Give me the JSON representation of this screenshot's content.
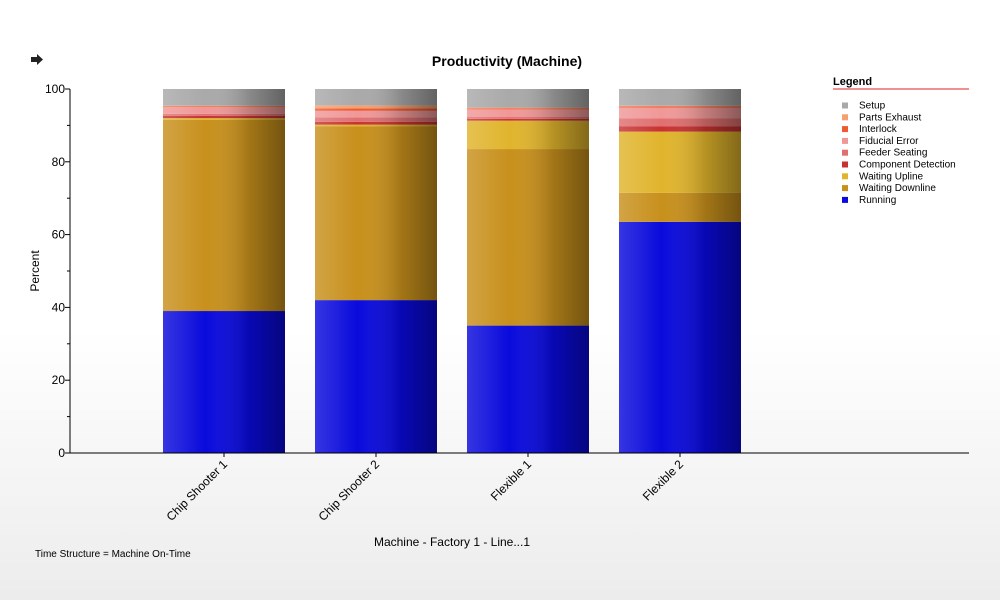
{
  "chart_data": {
    "type": "bar",
    "stacked": true,
    "title": "Productivity  (Machine)",
    "xlabel": "Machine - Factory 1 - Line...1",
    "ylabel": "Percent",
    "ylim": [
      0,
      100
    ],
    "yticks": [
      0,
      20,
      40,
      60,
      80,
      100
    ],
    "grid": false,
    "legend_title": "Legend",
    "legend_position": "top-right",
    "categories": [
      "Chip Shooter 1",
      "Chip Shooter 2",
      "Flexible 1",
      "Flexible 2"
    ],
    "series": [
      {
        "name": "Running",
        "color": "#0a0adc",
        "values": [
          39,
          42,
          35,
          63.5
        ]
      },
      {
        "name": "Waiting Downline",
        "color": "#c8901c",
        "values": [
          52.5,
          47.7,
          48.5,
          8
        ]
      },
      {
        "name": "Waiting Upline",
        "color": "#e0b42c",
        "values": [
          0.5,
          0.5,
          7.8,
          16.8
        ]
      },
      {
        "name": "Component Detection",
        "color": "#c83232",
        "values": [
          0.6,
          0.8,
          0.5,
          1.4
        ]
      },
      {
        "name": "Feeder Seating",
        "color": "#e07070",
        "values": [
          0.6,
          1.2,
          0.5,
          2.2
        ]
      },
      {
        "name": "Fiducial Error",
        "color": "#f09898",
        "values": [
          1.8,
          1.8,
          2.1,
          3.0
        ]
      },
      {
        "name": "Interlock",
        "color": "#ee5a32",
        "values": [
          0.2,
          0.7,
          0.3,
          0.3
        ]
      },
      {
        "name": "Parts Exhaust",
        "color": "#f4a070",
        "values": [
          0.2,
          0.8,
          0.2,
          0.2
        ]
      },
      {
        "name": "Setup",
        "color": "#a9a9a9",
        "values": [
          4.6,
          4.5,
          5.1,
          4.6
        ]
      }
    ]
  },
  "legend_order": [
    "Setup",
    "Parts Exhaust",
    "Interlock",
    "Fiducial Error",
    "Feeder Seating",
    "Component Detection",
    "Waiting Upline",
    "Waiting Downline",
    "Running"
  ],
  "footnote": "Time Structure = Machine On-Time",
  "nav_icon": "arrow-right-icon"
}
